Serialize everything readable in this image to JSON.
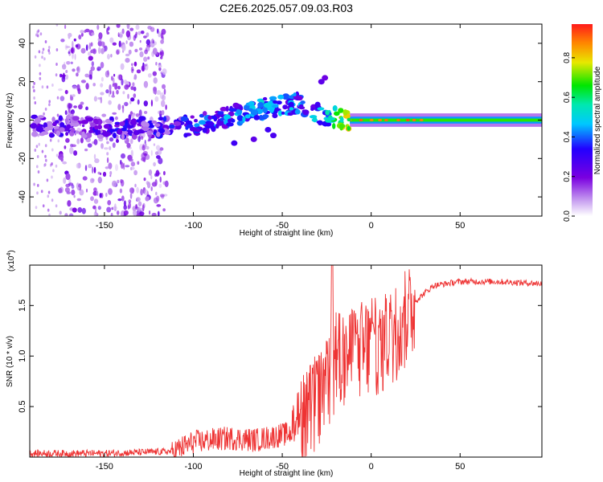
{
  "title": "C2E6.2025.057.09.03.R03",
  "chart_data": [
    {
      "type": "heatmap",
      "panel": "top",
      "xlabel": "Height of straight line (km)",
      "ylabel": "Frequency (Hz)",
      "xlim": [
        -192,
        96
      ],
      "ylim": [
        -50,
        50
      ],
      "xticks": [
        -150,
        -100,
        -50,
        0,
        50
      ],
      "yticks": [
        -40,
        -20,
        0,
        20,
        40
      ],
      "colorbar": {
        "label": "Normalized spectral amplitude",
        "range": [
          0.0,
          0.97
        ],
        "ticks": [
          0.0,
          0.2,
          0.4,
          0.6,
          0.8
        ]
      },
      "features": [
        {
          "name": "broadband noise band",
          "x_range": [
            -175,
            -115
          ],
          "y_range": [
            -50,
            50
          ],
          "amplitude": 0.2
        },
        {
          "name": "signal trace",
          "points": [
            {
              "x": -190,
              "y": -3,
              "a": 0.15
            },
            {
              "x": -150,
              "y": -4,
              "a": 0.2
            },
            {
              "x": -115,
              "y": -4,
              "a": 0.25
            },
            {
              "x": -100,
              "y": -3,
              "a": 0.3
            },
            {
              "x": -80,
              "y": 2,
              "a": 0.35
            },
            {
              "x": -60,
              "y": 6,
              "a": 0.4
            },
            {
              "x": -40,
              "y": 9,
              "a": 0.35
            },
            {
              "x": -28,
              "y": 3,
              "a": 0.4
            },
            {
              "x": -15,
              "y": 0,
              "a": 0.7
            },
            {
              "x": 0,
              "y": 0,
              "a": 0.75
            },
            {
              "x": 20,
              "y": 0,
              "a": 0.8
            },
            {
              "x": 50,
              "y": 0,
              "a": 0.8
            },
            {
              "x": 96,
              "y": 0,
              "a": 0.75
            }
          ]
        }
      ]
    },
    {
      "type": "line",
      "panel": "bottom",
      "xlabel": "Height of straight line (km)",
      "ylabel": "SNR (10 * v/v)",
      "yscale_label": "(x10",
      "yscale_exp": "4",
      "yscale_close": ")",
      "xlim": [
        -192,
        96
      ],
      "ylim": [
        0,
        1.9
      ],
      "xticks": [
        -150,
        -100,
        -50,
        0,
        50
      ],
      "yticks": [
        0.5,
        1.0,
        1.5
      ],
      "color": "#ee3333",
      "series": [
        {
          "name": "SNR",
          "x": [
            -192,
            -150,
            -112,
            -100,
            -80,
            -65,
            -45,
            -35,
            -25,
            -20,
            -15,
            -5,
            5,
            15,
            25,
            35,
            50,
            70,
            96
          ],
          "y": [
            0.04,
            0.04,
            0.06,
            0.16,
            0.2,
            0.18,
            0.25,
            0.45,
            0.75,
            1.0,
            1.05,
            1.1,
            1.15,
            1.3,
            1.55,
            1.7,
            1.74,
            1.74,
            1.72
          ]
        }
      ]
    }
  ]
}
